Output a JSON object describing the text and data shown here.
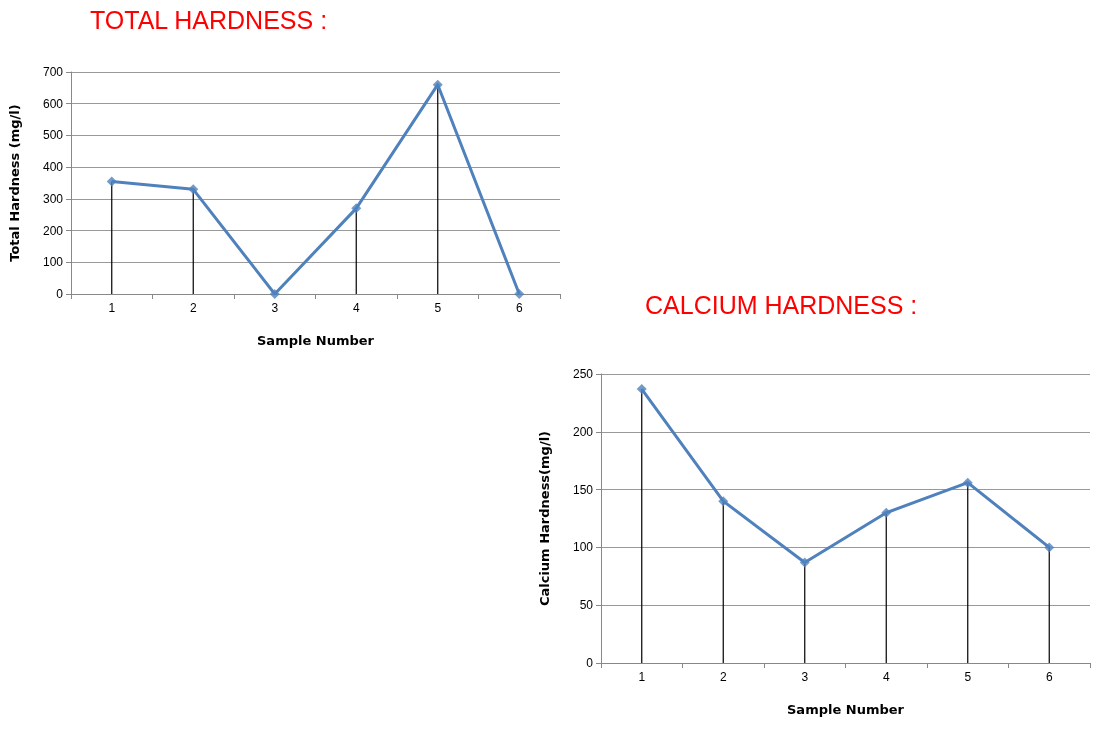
{
  "chart_data": [
    {
      "type": "line",
      "title": "TOTAL HARDNESS :",
      "xlabel": "Sample Number",
      "ylabel": "Total Hardness (mg/l)",
      "categories": [
        "1",
        "2",
        "3",
        "4",
        "5",
        "6"
      ],
      "series": [
        {
          "color": "#4f81bd",
          "marker": "none",
          "values": [
            355,
            330,
            0,
            270,
            660,
            0
          ]
        },
        {
          "type": "lollipop",
          "color": "#4f81bd",
          "marker": "diamond",
          "values": [
            355,
            330,
            0,
            270,
            660,
            0
          ]
        }
      ],
      "ylim": [
        0,
        700
      ],
      "yticks": [
        0,
        100,
        200,
        300,
        400,
        500,
        600,
        700
      ],
      "grid": "y"
    },
    {
      "type": "line",
      "title": "CALCIUM HARDNESS :",
      "xlabel": "Sample Number",
      "ylabel": "Calcium Hardness(mg/l)",
      "categories": [
        "1",
        "2",
        "3",
        "4",
        "5",
        "6"
      ],
      "series": [
        {
          "color": "#4f81bd",
          "marker": "none",
          "values": [
            237,
            140,
            87,
            130,
            156,
            100
          ]
        },
        {
          "type": "lollipop",
          "color": "#4f81bd",
          "marker": "diamond",
          "values": [
            237,
            140,
            87,
            130,
            156,
            100
          ]
        }
      ],
      "ylim": [
        0,
        250
      ],
      "yticks": [
        0,
        50,
        100,
        150,
        200,
        250
      ],
      "grid": "y"
    }
  ]
}
